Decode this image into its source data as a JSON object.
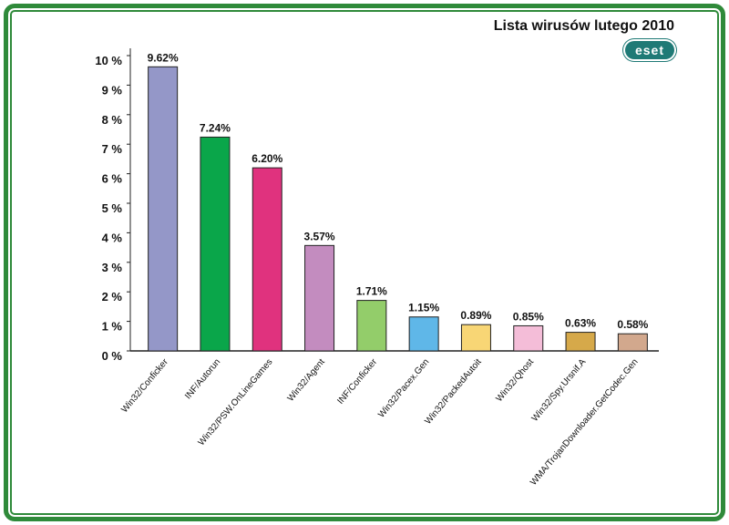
{
  "title": "Lista wirusów lutego 2010",
  "logo_text": "eset",
  "colors": {
    "frame": "#2f8a3a",
    "logo": "#1f7a76"
  },
  "chart_data": {
    "type": "bar",
    "title": "Lista wirusów lutego 2010",
    "xlabel": "",
    "ylabel": "",
    "ylim": [
      0,
      10
    ],
    "yticks": [
      "0 %",
      "1 %",
      "2 %",
      "3 %",
      "4 %",
      "5 %",
      "6 %",
      "7 %",
      "8 %",
      "9 %",
      "10 %"
    ],
    "grid": false,
    "categories": [
      "Win32/Conficker",
      "INF/Autorun",
      "Win32/PSW.OnLineGames",
      "Win32/Agent",
      "INF/Conficker",
      "Win32/Pacex.Gen",
      "Win32/PackedAutoit",
      "Win32/Qhost",
      "Win32/Spy.Ursnif.A",
      "WMA/TrojanDownloader.GetCodec.Gen"
    ],
    "values": [
      9.62,
      7.24,
      6.2,
      3.57,
      1.71,
      1.15,
      0.89,
      0.85,
      0.63,
      0.58
    ],
    "value_labels": [
      "9.62%",
      "7.24%",
      "6.20%",
      "3.57%",
      "1.71%",
      "1.15%",
      "0.89%",
      "0.85%",
      "0.63%",
      "0.58%"
    ],
    "bar_colors": [
      "#9497c8",
      "#0aa64a",
      "#e0327e",
      "#c38cbf",
      "#93cd6a",
      "#5fb7e8",
      "#f8d675",
      "#f4bdd8",
      "#d6a94a",
      "#d2a88d"
    ]
  }
}
